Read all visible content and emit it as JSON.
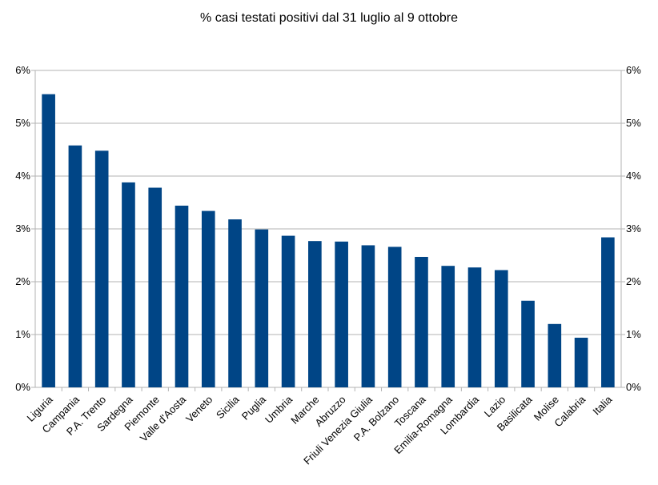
{
  "chart_data": {
    "type": "bar",
    "title": "% casi testati positivi dal 31 luglio al 9 ottobre",
    "xlabel": "",
    "ylabel": "",
    "ylim": [
      0,
      6
    ],
    "y_ticks": [
      "0%",
      "1%",
      "2%",
      "3%",
      "4%",
      "5%",
      "6%"
    ],
    "secondary_y_axis": true,
    "grid": true,
    "bar_color": "#004586",
    "categories": [
      "Liguria",
      "Campania",
      "P.A. Trento",
      "Sardegna",
      "Piemonte",
      "Valle d'Aosta",
      "Veneto",
      "Sicilia",
      "Puglia",
      "Umbria",
      "Marche",
      "Abruzzo",
      "Friuli Venezia Giulia",
      "P.A. Bolzano",
      "Toscana",
      "Emilia-Romagna",
      "Lombardia",
      "Lazio",
      "Basilicata",
      "Molise",
      "Calabria",
      "Italia"
    ],
    "values": [
      5.55,
      4.58,
      4.48,
      3.88,
      3.78,
      3.44,
      3.34,
      3.18,
      2.99,
      2.87,
      2.77,
      2.76,
      2.69,
      2.66,
      2.47,
      2.3,
      2.27,
      2.22,
      1.64,
      1.2,
      0.94,
      2.84
    ]
  }
}
